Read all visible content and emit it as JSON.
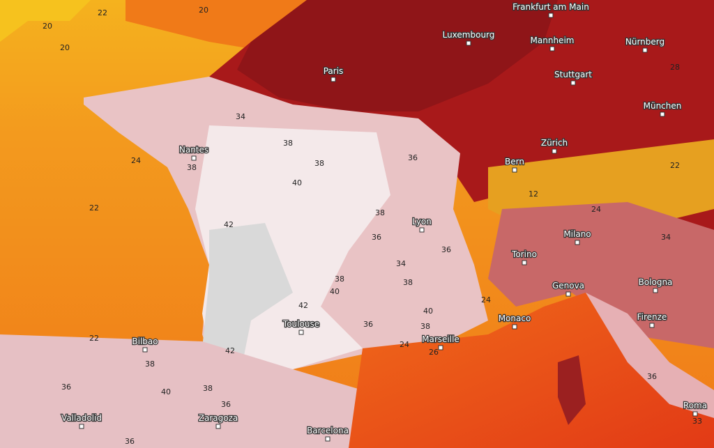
{
  "cities": [
    "Frankfurt am Main",
    "Luxembourg",
    "Mannheim",
    "Nürnberg",
    "Paris",
    "Stuttgart",
    "München",
    "Nantes",
    "Zürich",
    "Bern",
    "Lyon",
    "Milano",
    "Torino",
    "Genova",
    "Bologna",
    "Monaco",
    "Firenze",
    "Toulouse",
    "Marseille",
    "Bilbao",
    "Zaragoza",
    "Valladolid",
    "Barcelona",
    "Roma"
  ],
  "temperatures": [
    20,
    20,
    20,
    22,
    34,
    38,
    38,
    36,
    40,
    38,
    42,
    38,
    36,
    34,
    38,
    38,
    40,
    42,
    36,
    40,
    38,
    36,
    42,
    38,
    36,
    40,
    38,
    36,
    36,
    22,
    22,
    24,
    12,
    22,
    24,
    34,
    36,
    33,
    28,
    24,
    26,
    24
  ]
}
